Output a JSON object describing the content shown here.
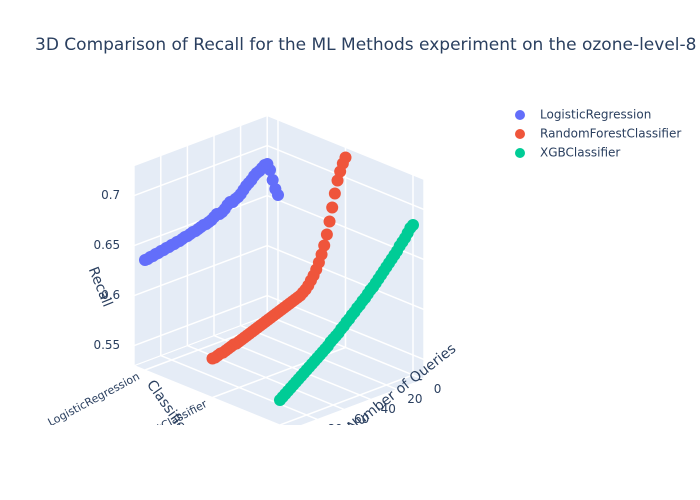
{
  "chart_data": {
    "type": "scatter3d",
    "title": "3D Comparison of Recall for the ML Methods experiment on the ozone-level-8",
    "x_label": "Number of Queries",
    "y_label": "Classifier",
    "z_label": "Recall",
    "x": [
      0,
      2,
      4,
      6,
      8,
      10,
      12,
      14,
      16,
      18,
      20,
      22,
      24,
      26,
      28,
      30,
      32,
      34,
      36,
      38,
      40,
      42,
      44,
      46,
      48,
      50,
      52,
      54,
      56,
      58,
      60,
      62,
      64,
      66,
      68,
      70,
      72,
      74,
      76,
      78,
      80,
      82,
      84,
      86,
      88,
      90,
      92,
      94,
      96,
      98,
      100
    ],
    "categories": [
      "LogisticRegression",
      "RandomForestClassifier",
      "XGBClassifier"
    ],
    "xlim": [
      0,
      100
    ],
    "xticks": [
      0,
      20,
      40,
      60,
      80
    ],
    "zlim": [
      0.53,
      0.73
    ],
    "zticks": [
      0.55,
      0.6,
      0.65,
      0.7
    ],
    "series": [
      {
        "name": "LogisticRegression",
        "color": "#636efa",
        "values": [
          0.655,
          0.662,
          0.672,
          0.683,
          0.69,
          0.69,
          0.688,
          0.686,
          0.685,
          0.683,
          0.68,
          0.678,
          0.676,
          0.673,
          0.67,
          0.668,
          0.667,
          0.665,
          0.666,
          0.664,
          0.661,
          0.659,
          0.658,
          0.659,
          0.657,
          0.655,
          0.654,
          0.653,
          0.653,
          0.652,
          0.651,
          0.65,
          0.65,
          0.649,
          0.648,
          0.648,
          0.647,
          0.646,
          0.646,
          0.645,
          0.645,
          0.644,
          0.644,
          0.643,
          0.643,
          0.642,
          0.642,
          0.641,
          0.641,
          0.64,
          0.64
        ]
      },
      {
        "name": "RandomForestClassifier",
        "color": "#ef553b",
        "values": [
          0.72,
          0.715,
          0.708,
          0.7,
          0.688,
          0.675,
          0.662,
          0.65,
          0.64,
          0.632,
          0.625,
          0.619,
          0.614,
          0.61,
          0.606,
          0.603,
          0.601,
          0.599,
          0.598,
          0.597,
          0.596,
          0.595,
          0.594,
          0.593,
          0.592,
          0.591,
          0.59,
          0.589,
          0.588,
          0.587,
          0.586,
          0.585,
          0.584,
          0.583,
          0.582,
          0.581,
          0.58,
          0.579,
          0.578,
          0.577,
          0.576,
          0.575,
          0.575,
          0.574,
          0.573,
          0.572,
          0.571,
          0.571,
          0.57,
          0.569,
          0.569
        ]
      },
      {
        "name": "XGBClassifier",
        "color": "#00cc96",
        "values": [
          0.68,
          0.678,
          0.674,
          0.67,
          0.667,
          0.664,
          0.66,
          0.657,
          0.654,
          0.651,
          0.648,
          0.645,
          0.642,
          0.639,
          0.636,
          0.633,
          0.631,
          0.628,
          0.625,
          0.623,
          0.62,
          0.618,
          0.615,
          0.613,
          0.61,
          0.608,
          0.605,
          0.603,
          0.6,
          0.598,
          0.596,
          0.594,
          0.591,
          0.589,
          0.587,
          0.585,
          0.583,
          0.581,
          0.579,
          0.577,
          0.575,
          0.573,
          0.571,
          0.569,
          0.567,
          0.565,
          0.563,
          0.561,
          0.559,
          0.557,
          0.555
        ]
      }
    ]
  }
}
